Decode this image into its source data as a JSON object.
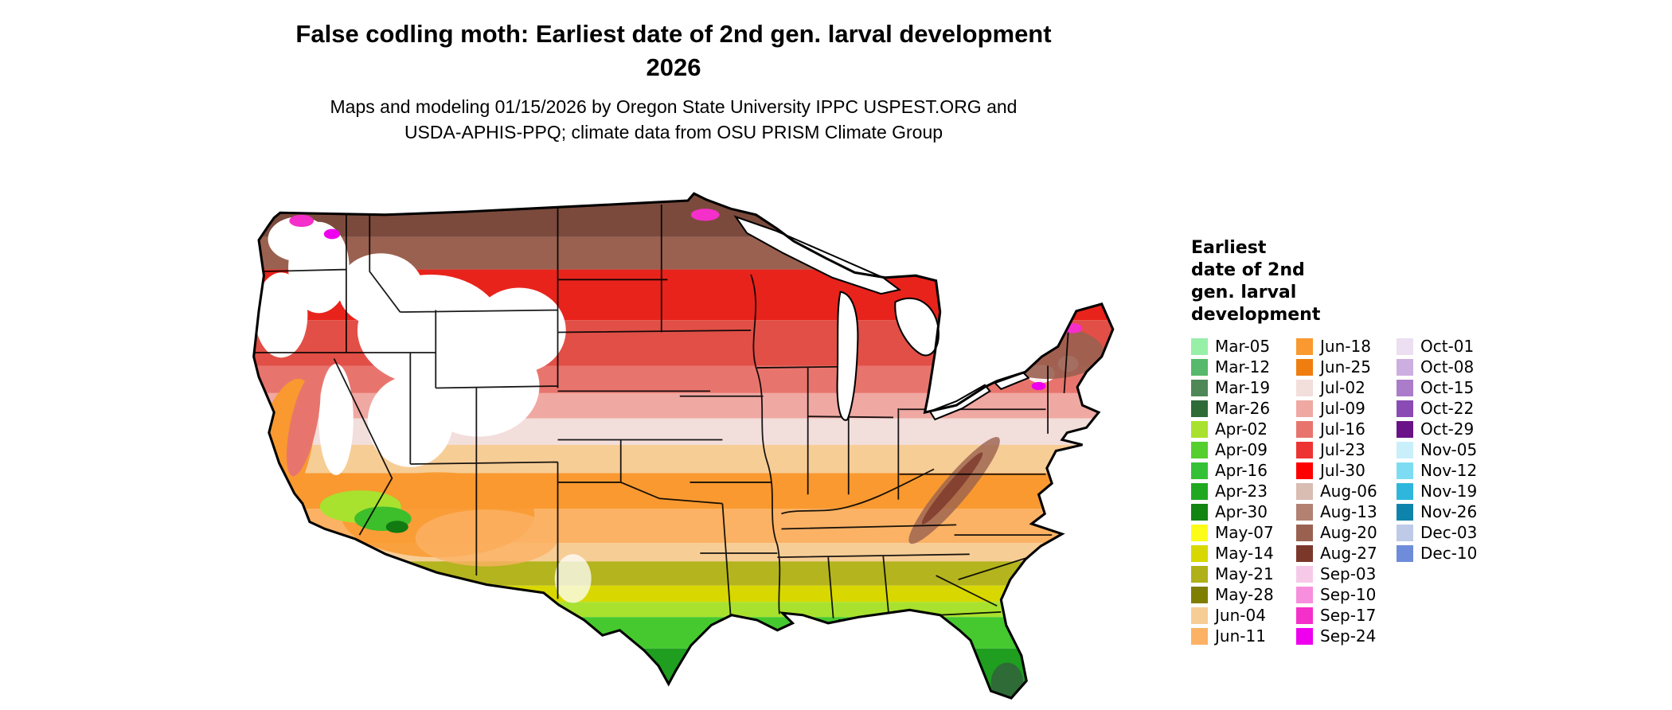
{
  "header": {
    "title_line1": "False codling moth: Earliest date of 2nd gen. larval development",
    "title_line2": "2026",
    "subtitle_line1": "Maps and modeling 01/15/2026 by Oregon State University IPPC USPEST.ORG and",
    "subtitle_line2": "USDA-APHIS-PPQ; climate data from OSU PRISM Climate Group"
  },
  "map": {
    "type": "choropleth-raster",
    "region_shown": "contiguous-united-states",
    "border_color": "#000000",
    "background": "#ffffff"
  },
  "legend": {
    "title_lines": [
      "Earliest",
      "date of 2nd",
      "gen. larval",
      "development"
    ],
    "columns": [
      {
        "items": [
          {
            "label": "Mar-05",
            "color": "#98EFA8"
          },
          {
            "label": "Mar-12",
            "color": "#57B96B"
          },
          {
            "label": "Mar-19",
            "color": "#4F8757"
          },
          {
            "label": "Mar-26",
            "color": "#2E6B37"
          },
          {
            "label": "Apr-02",
            "color": "#A8E22E"
          },
          {
            "label": "Apr-09",
            "color": "#55CE2F"
          },
          {
            "label": "Apr-16",
            "color": "#35C135"
          },
          {
            "label": "Apr-23",
            "color": "#21A821"
          },
          {
            "label": "Apr-30",
            "color": "#118411"
          },
          {
            "label": "May-07",
            "color": "#FCFC19"
          },
          {
            "label": "May-14",
            "color": "#D8D800"
          },
          {
            "label": "May-21",
            "color": "#B0B018"
          },
          {
            "label": "May-28",
            "color": "#7E7E00"
          },
          {
            "label": "Jun-04",
            "color": "#F7CD96"
          },
          {
            "label": "Jun-11",
            "color": "#FBB264"
          }
        ]
      },
      {
        "items": [
          {
            "label": "Jun-18",
            "color": "#F9992F"
          },
          {
            "label": "Jun-25",
            "color": "#F07E0F"
          },
          {
            "label": "Jul-02",
            "color": "#F2DEDB"
          },
          {
            "label": "Jul-09",
            "color": "#F0A8A2"
          },
          {
            "label": "Jul-16",
            "color": "#E8756D"
          },
          {
            "label": "Jul-23",
            "color": "#EE3333"
          },
          {
            "label": "Jul-30",
            "color": "#FF0000"
          },
          {
            "label": "Aug-06",
            "color": "#D9BCB2"
          },
          {
            "label": "Aug-13",
            "color": "#B28171"
          },
          {
            "label": "Aug-20",
            "color": "#9A6150"
          },
          {
            "label": "Aug-27",
            "color": "#7C372B"
          },
          {
            "label": "Sep-03",
            "color": "#F7C9E9"
          },
          {
            "label": "Sep-10",
            "color": "#F78FDE"
          },
          {
            "label": "Sep-17",
            "color": "#F52FC9"
          },
          {
            "label": "Sep-24",
            "color": "#EE00EE"
          }
        ]
      },
      {
        "items": [
          {
            "label": "Oct-01",
            "color": "#EBDFF1"
          },
          {
            "label": "Oct-08",
            "color": "#CDAEE0"
          },
          {
            "label": "Oct-15",
            "color": "#AB7CC9"
          },
          {
            "label": "Oct-22",
            "color": "#8A4BB5"
          },
          {
            "label": "Oct-29",
            "color": "#6A1287"
          },
          {
            "label": "Nov-05",
            "color": "#C9EFFA"
          },
          {
            "label": "Nov-12",
            "color": "#7EDCF2"
          },
          {
            "label": "Nov-19",
            "color": "#2EB6DC"
          },
          {
            "label": "Nov-26",
            "color": "#0E84AD"
          },
          {
            "label": "Dec-03",
            "color": "#BECAE8"
          },
          {
            "label": "Dec-10",
            "color": "#6E8CD9"
          }
        ]
      }
    ]
  }
}
